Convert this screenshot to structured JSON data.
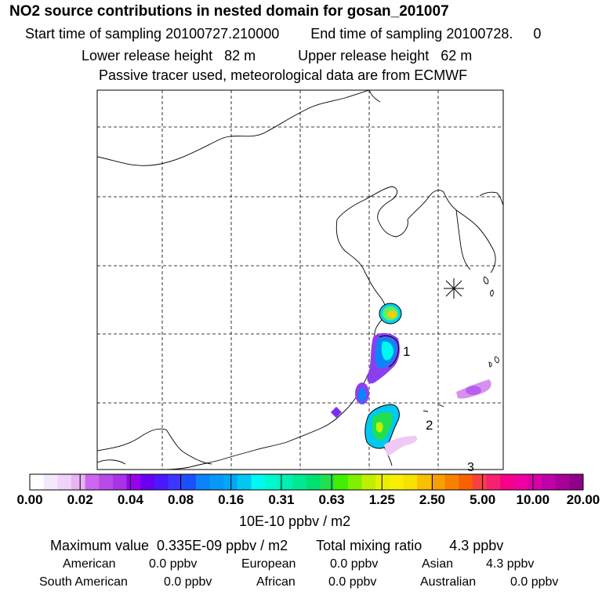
{
  "header": {
    "title": "NO2 source contributions in nested domain for gosan_201007",
    "start_label": "Start time of sampling 20100727.210000",
    "end_label": "End time of sampling 20100728.",
    "end_suffix": "0",
    "lower_height": "Lower release height   82 m",
    "upper_height": "Upper release height   62 m",
    "tracer_note": "Passive tracer used, meteorological data are from ECMWF"
  },
  "map": {
    "marker_labels": [
      "1",
      "2",
      "3"
    ],
    "station_marker": "asterisk-icon"
  },
  "colorbar": {
    "tick_labels": [
      "0.00",
      "0.02",
      "0.04",
      "0.08",
      "0.16",
      "0.31",
      "0.63",
      "1.25",
      "2.50",
      "5.00",
      "10.00",
      "20.00"
    ],
    "colors": [
      "#ffffff",
      "#f6e8fb",
      "#f0d3f8",
      "#e8b4f4",
      "#cc66ee",
      "#b84ae8",
      "#a933e6",
      "#9a00f0",
      "#6a00f0",
      "#4a18ff",
      "#3a38ff",
      "#1a50ff",
      "#0a84f8",
      "#0898f8",
      "#00a8f8",
      "#00c8f0",
      "#00f8f0",
      "#00f8d0",
      "#00f0b0",
      "#00e890",
      "#00e070",
      "#20e050",
      "#40f000",
      "#80f000",
      "#c0f000",
      "#e8f000",
      "#f8f000",
      "#f8e000",
      "#f8c000",
      "#f8a000",
      "#f88000",
      "#f86000",
      "#f84040",
      "#f82070",
      "#f80088",
      "#f000a0",
      "#d800a8",
      "#c000a8",
      "#a80098",
      "#900088"
    ],
    "unit": "10E-10 ppbv / m2"
  },
  "summary": {
    "max_value": "Maximum value  0.335E-09 ppbv / m2",
    "total_mixing": "Total mixing ratio       4.3 ppbv"
  },
  "regions": [
    {
      "name": "American",
      "value": "0.0 ppbv"
    },
    {
      "name": "European",
      "value": "0.0 ppbv"
    },
    {
      "name": "Asian",
      "value": "4.3 ppbv"
    },
    {
      "name": "South American",
      "value": "0.0 ppbv"
    },
    {
      "name": "African",
      "value": "0.0 ppbv"
    },
    {
      "name": "Australian",
      "value": "0.0 ppbv"
    }
  ]
}
